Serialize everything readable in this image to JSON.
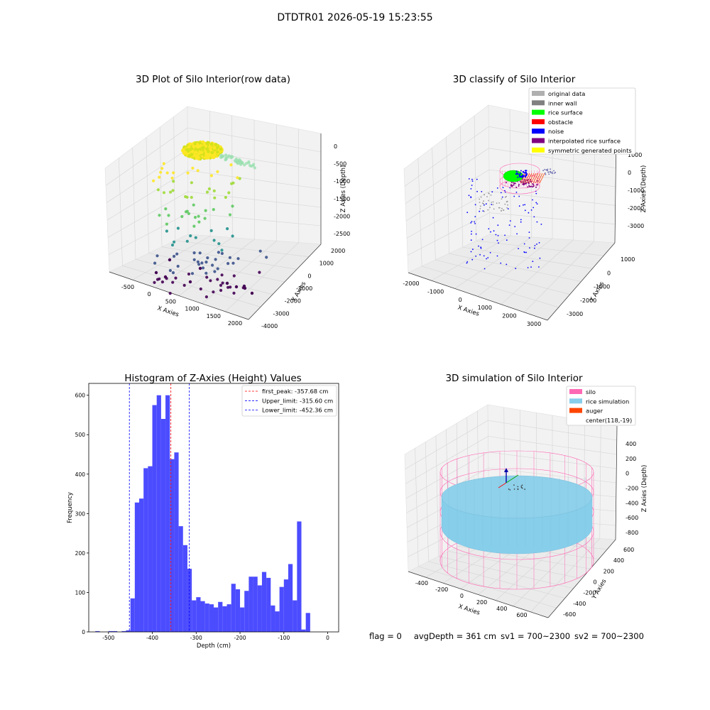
{
  "figure": {
    "title": "DTDTR01 2026-05-19 15:23:55",
    "footer": {
      "flag": "flag = 0",
      "avg_depth": "avgDepth = 361 cm",
      "sv1": "sv1 = 700~2300",
      "sv2": "sv2 = 700~2300"
    }
  },
  "chart_data": [
    {
      "type": "scatter3d",
      "title": "3D Plot of Silo Interior(row data)",
      "xlabel": "X Axies",
      "ylabel": "Y Axies",
      "zlabel": "Z Axies (Depth)",
      "xticks": [
        "-500",
        "0",
        "500",
        "1000",
        "1500",
        "2000"
      ],
      "yticks": [
        "-4000",
        "-3000",
        "-2000",
        "-1000",
        "0",
        "1000",
        "2000"
      ],
      "zticks": [
        "0",
        "-500",
        "-1000",
        "-1500",
        "-2000",
        "-2500"
      ],
      "colormap": "viridis"
    },
    {
      "type": "scatter3d",
      "title": "3D classify of Silo Interior",
      "xlabel": "X Axies",
      "ylabel": "Y Axies",
      "zlabel": "Z Axies (Depth)",
      "xticks": [
        "-2000",
        "-1000",
        "0",
        "1000",
        "2000",
        "3000"
      ],
      "yticks": [
        "-3000",
        "-2000",
        "-1000",
        "0",
        "1000"
      ],
      "zticks": [
        "1000",
        "0",
        "-1000",
        "-2000",
        "-3000"
      ],
      "legend_position": "top-right",
      "legend": [
        {
          "label": "original data",
          "color": "#b0b0b0"
        },
        {
          "label": "inner wall",
          "color": "#808080"
        },
        {
          "label": "rice surface",
          "color": "#00ff00"
        },
        {
          "label": "obstacle",
          "color": "#ff0000"
        },
        {
          "label": "noise",
          "color": "#0000ff"
        },
        {
          "label": "interpolated rice surface",
          "color": "#800080"
        },
        {
          "label": "symmetric generated points",
          "color": "#ffff00"
        }
      ]
    },
    {
      "type": "bar",
      "title": "Histogram of Z-Axies (Height) Values",
      "xlabel": "Depth (cm)",
      "ylabel": "Frequency",
      "xlim": [
        -545,
        25
      ],
      "ylim": [
        0,
        630
      ],
      "xticks": [
        -500,
        -400,
        -300,
        -200,
        -100,
        0
      ],
      "yticks": [
        0,
        100,
        200,
        300,
        400,
        500,
        600
      ],
      "bar_color": "#4c4cff",
      "bin_width": 10,
      "bins": [
        [
          -525,
          2
        ],
        [
          -515,
          0
        ],
        [
          -505,
          0
        ],
        [
          -495,
          2
        ],
        [
          -485,
          2
        ],
        [
          -475,
          0
        ],
        [
          -465,
          2
        ],
        [
          -455,
          4
        ],
        [
          -445,
          85
        ],
        [
          -435,
          328
        ],
        [
          -425,
          338
        ],
        [
          -415,
          415
        ],
        [
          -405,
          420
        ],
        [
          -395,
          575
        ],
        [
          -385,
          600
        ],
        [
          -375,
          540
        ],
        [
          -365,
          600
        ],
        [
          -355,
          438
        ],
        [
          -345,
          455
        ],
        [
          -335,
          268
        ],
        [
          -325,
          220
        ],
        [
          -315,
          160
        ],
        [
          -305,
          80
        ],
        [
          -295,
          88
        ],
        [
          -285,
          78
        ],
        [
          -275,
          72
        ],
        [
          -265,
          70
        ],
        [
          -255,
          62
        ],
        [
          -245,
          76
        ],
        [
          -235,
          65
        ],
        [
          -225,
          70
        ],
        [
          -215,
          122
        ],
        [
          -205,
          108
        ],
        [
          -195,
          62
        ],
        [
          -185,
          104
        ],
        [
          -175,
          140
        ],
        [
          -165,
          140
        ],
        [
          -155,
          118
        ],
        [
          -145,
          152
        ],
        [
          -135,
          137
        ],
        [
          -125,
          67
        ],
        [
          -115,
          52
        ],
        [
          -105,
          114
        ],
        [
          -95,
          133
        ],
        [
          -85,
          172
        ],
        [
          -75,
          80
        ],
        [
          -65,
          280
        ],
        [
          -55,
          6
        ],
        [
          -45,
          48
        ]
      ],
      "vlines": [
        {
          "label": "first_peak: -357.68 cm",
          "x": -357.68,
          "color": "#ff0000"
        },
        {
          "label": "Upper_limit: -315.60 cm",
          "x": -315.6,
          "color": "#0000ff"
        },
        {
          "label": "Lower_limit: -452.36 cm",
          "x": -452.36,
          "color": "#0000ff"
        }
      ]
    },
    {
      "type": "surface3d",
      "title": "3D simulation of Silo Interior",
      "xlabel": "X Axies",
      "ylabel": "Y Axies",
      "zlabel": "Z Axies (Depth)",
      "xticks": [
        "-400",
        "-200",
        "0",
        "200",
        "400",
        "600"
      ],
      "yticks": [
        "-600",
        "-400",
        "-200",
        "0",
        "200",
        "400",
        "600"
      ],
      "zticks": [
        "400",
        "200",
        "0",
        "-200",
        "-400",
        "-600",
        "-800"
      ],
      "legend_position": "top-right",
      "legend": [
        {
          "label": "silo",
          "color": "#ff69b4"
        },
        {
          "label": "rice simulation",
          "color": "#87ceeb"
        },
        {
          "label": "auger",
          "color": "#ff4500"
        },
        {
          "label": "center(118,-19)",
          "color": "none"
        }
      ]
    }
  ]
}
